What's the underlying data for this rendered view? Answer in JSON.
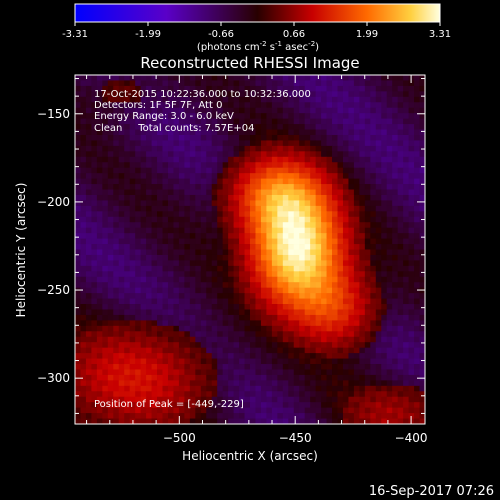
{
  "chart_data": {
    "type": "heatmap",
    "title": "Reconstructed RHESSI Image",
    "xlabel": "Heliocentric X (arcsec)",
    "ylabel": "Heliocentric Y (arcsec)",
    "xlim": [
      -545,
      -394
    ],
    "ylim": [
      -326,
      -128
    ],
    "xticks": [
      -500,
      -450,
      -400
    ],
    "yticks": [
      -150,
      -200,
      -250,
      -300
    ],
    "colorbar": {
      "ticks": [
        "-3.31",
        "-1.99",
        "-0.66",
        "0.66",
        "1.99",
        "3.31"
      ],
      "range": [
        -3.31,
        3.31
      ],
      "units": "(photons cm",
      "units_sup1": "-2",
      "units_mid": " s",
      "units_sup2": "-1",
      "units_mid2": " asec",
      "units_sup3": "-2",
      "units_end": ")"
    },
    "annotations": [
      "17-Oct-2015 10:22:36.000 to 10:32:36.000",
      "Detectors: 1F 5F 7F, Att 0",
      "Energy Range: 3.0 - 6.0 keV",
      "Clean     Total counts: 7.57E+04"
    ],
    "peak_label": "Position of Peak = [-449,-229]",
    "peak": [
      -449,
      -229
    ],
    "sources": [
      {
        "x": -449,
        "y": -228,
        "sx": 14,
        "sy": 22,
        "amp": 3.3
      },
      {
        "x": -458,
        "y": -195,
        "sx": 15,
        "sy": 16,
        "amp": 1.9
      },
      {
        "x": -432,
        "y": -262,
        "sx": 13,
        "sy": 16,
        "amp": 1.3
      },
      {
        "x": -520,
        "y": -300,
        "sx": 25,
        "sy": 22,
        "amp": 1.2
      },
      {
        "x": -408,
        "y": -320,
        "sx": 18,
        "sy": 14,
        "amp": 0.8
      },
      {
        "x": -525,
        "y": -138,
        "sx": 14,
        "sy": 10,
        "amp": 0.5
      }
    ]
  },
  "footer": {
    "date": "16-Sep-2017 07:26"
  }
}
